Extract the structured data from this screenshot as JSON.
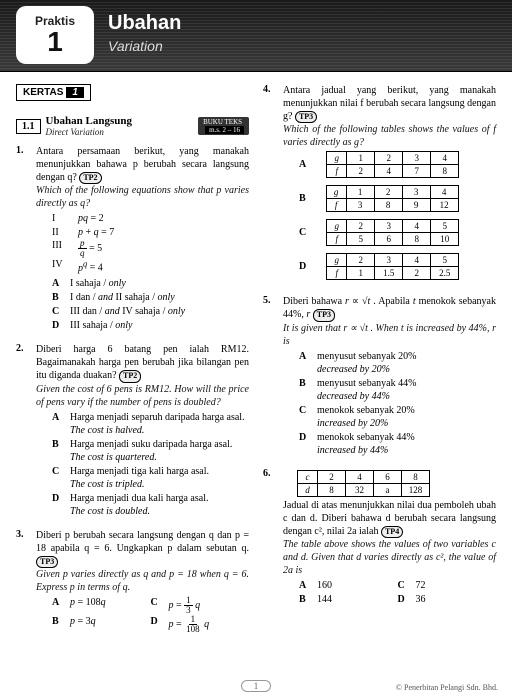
{
  "header": {
    "praktis": "Praktis",
    "num": "1",
    "title_ms": "Ubahan",
    "title_en": "Variation"
  },
  "kertas": {
    "label": "KERTAS",
    "num": "1"
  },
  "section": {
    "num": "1.1",
    "ms": "Ubahan Langsung",
    "en": "Direct Variation",
    "pill": "BUKU TEKS",
    "sub": "m.s. 2 – 16"
  },
  "q1": {
    "n": "1.",
    "ms": "Antara persamaan berikut, yang manakah menunjukkan bahawa p berubah secara langsung dengan q?",
    "en": "Which of the following equations show that p varies directly as q?",
    "tp": "TP2",
    "roman": [
      [
        "I",
        "pq = 2"
      ],
      [
        "II",
        "p + q = 7"
      ],
      [
        "III",
        "p/q = 5"
      ],
      [
        "IV",
        "p^q = 4"
      ]
    ],
    "opts": [
      [
        "A",
        "I sahaja / only"
      ],
      [
        "B",
        "I dan / and II sahaja / only"
      ],
      [
        "C",
        "III dan / and IV sahaja / only"
      ],
      [
        "D",
        "III sahaja / only"
      ]
    ]
  },
  "q2": {
    "n": "2.",
    "ms": "Diberi harga 6 batang pen ialah RM12. Bagaimanakah harga pen berubah jika bilangan pen itu diganda duakan?",
    "en": "Given the cost of 6 pens is RM12. How will the price of pens vary if the number of pens is doubled?",
    "tp": "TP2",
    "opts": [
      [
        "A",
        "Harga menjadi separuh daripada harga asal.",
        "The cost is halved."
      ],
      [
        "B",
        "Harga menjadi suku daripada harga asal.",
        "The cost is quartered."
      ],
      [
        "C",
        "Harga menjadi tiga kali harga asal.",
        "The cost is tripled."
      ],
      [
        "D",
        "Harga menjadi dua kali harga asal.",
        "The cost is doubled."
      ]
    ]
  },
  "q3": {
    "n": "3.",
    "ms": "Diberi p berubah secara langsung dengan q dan p = 18 apabila q = 6. Ungkapkan p dalam sebutan q.",
    "en": "Given p varies directly as q and p = 18 when q = 6. Express p in terms of q.",
    "tp": "TP3",
    "opts": [
      [
        "A",
        "p = 108q"
      ],
      [
        "B",
        "p = 3q"
      ],
      [
        "C",
        "p = (1/3) q"
      ],
      [
        "D",
        "p = (1/108) q"
      ]
    ]
  },
  "q4": {
    "n": "4.",
    "ms": "Antara jadual yang berikut, yang manakah menunjukkan nilai f berubah secara langsung dengan g?",
    "en": "Which of the following tables shows the values of f varies directly as g?",
    "tp": "TP3",
    "tables": {
      "A": [
        [
          "g",
          "1",
          "2",
          "3",
          "4"
        ],
        [
          "f",
          "2",
          "4",
          "7",
          "8"
        ]
      ],
      "B": [
        [
          "g",
          "1",
          "2",
          "3",
          "4"
        ],
        [
          "f",
          "3",
          "8",
          "9",
          "12"
        ]
      ],
      "C": [
        [
          "g",
          "2",
          "3",
          "4",
          "5"
        ],
        [
          "f",
          "5",
          "6",
          "8",
          "10"
        ]
      ],
      "D": [
        [
          "g",
          "2",
          "3",
          "4",
          "5"
        ],
        [
          "f",
          "1",
          "1.5",
          "2",
          "2.5"
        ]
      ]
    }
  },
  "q5": {
    "n": "5.",
    "ms": "Diberi bahawa r ∝ √t . Apabila t menokok sebanyak 44%, r",
    "en": "It is given that r ∝ √t . When t is increased by 44%, r is",
    "tp": "TP3",
    "opts": [
      [
        "A",
        "menyusut sebanyak 20%",
        "decreased by 20%"
      ],
      [
        "B",
        "menyusut sebanyak 44%",
        "decreased by 44%"
      ],
      [
        "C",
        "menokok sebanyak 20%",
        "increased by 20%"
      ],
      [
        "D",
        "menokok sebanyak 44%",
        "increased by 44%"
      ]
    ]
  },
  "q6": {
    "n": "6.",
    "table": [
      [
        "c",
        "2",
        "4",
        "6",
        "8"
      ],
      [
        "d",
        "8",
        "32",
        "a",
        "128"
      ]
    ],
    "ms": "Jadual di atas menunjukkan nilai dua pemboleh ubah c dan d. Diberi bahawa d berubah secara langsung dengan c², nilai 2a ialah",
    "en": "The table above shows the values of two variables c and d. Given that d varies directly as c², the value of 2a is",
    "tp": "TP4",
    "opts": [
      [
        "A",
        "160"
      ],
      [
        "B",
        "144"
      ],
      [
        "C",
        "72"
      ],
      [
        "D",
        "36"
      ]
    ]
  },
  "footer": {
    "page": "1",
    "copy": "© Penerbitan Pelangi Sdn. Bhd."
  }
}
